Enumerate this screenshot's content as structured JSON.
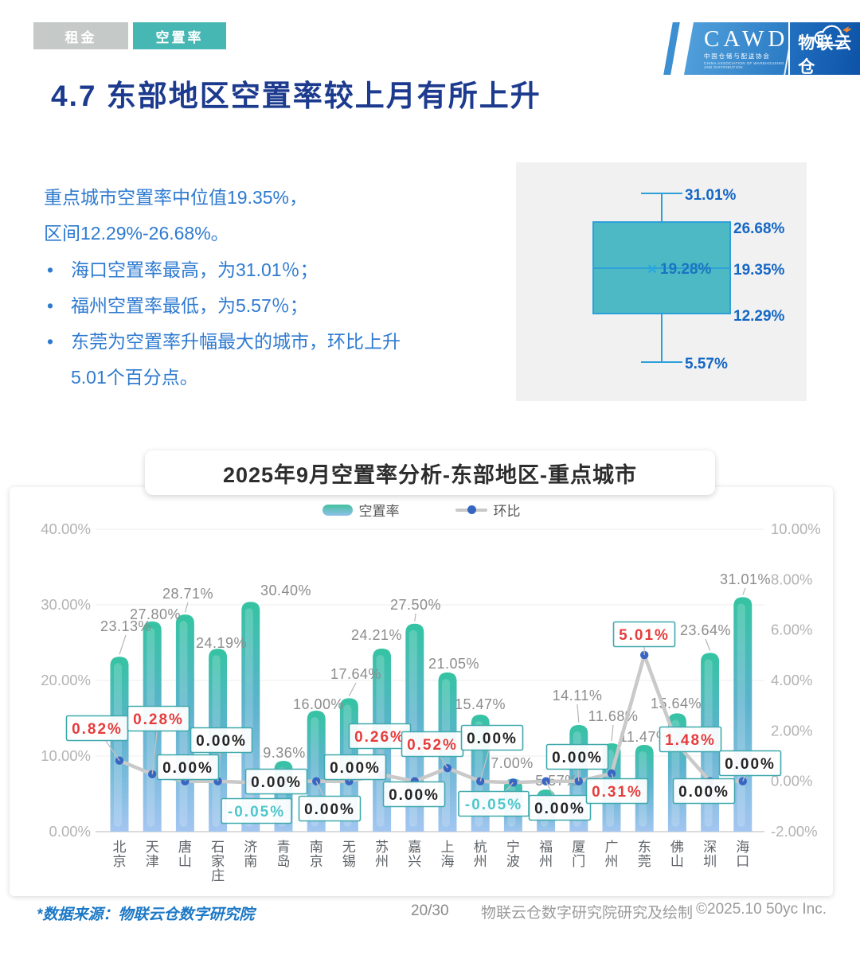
{
  "tabs": [
    {
      "label": "租金",
      "active": false
    },
    {
      "label": "空置率",
      "active": true
    }
  ],
  "logo": {
    "cawd": "CAWD",
    "cawd_sub": "中国仓储与配送协会",
    "cawd_sub_en": "CHINA ASSOCIATION OF WAREHOUSING AND DISTRIBUTION",
    "brand": "物联云仓",
    "brand_sub_parts": [
      "W",
      "AREHOUSE ",
      "I",
      "N",
      " ",
      "C",
      "LOUD"
    ]
  },
  "page_title": "4.7 东部地区空置率较上月有所上升",
  "intro": {
    "line1": "重点城市空置率中位值19.35%，",
    "line2": "区间12.29%-26.68%。",
    "bullet_mark": "•",
    "bullets": [
      [
        "海口空置率最高，为31.01％；"
      ],
      [
        "福州空置率最低，为5.57％；"
      ],
      [
        "东莞为空置率升幅最大的城市，环比上升",
        "5.01个百分点。"
      ]
    ]
  },
  "chart_title": "2025年9月空置率分析-东部地区-重点城市",
  "legend": [
    {
      "label": "空置率",
      "type": "bar"
    },
    {
      "label": "环比",
      "type": "line"
    }
  ],
  "chart_data": [
    {
      "type": "bar",
      "subtype": "bar-line-combo",
      "title": "2025年9月空置率分析-东部地区-重点城市",
      "categories": [
        "北京",
        "天津",
        "唐山",
        "石家庄",
        "济南",
        "青岛",
        "南京",
        "无锡",
        "苏州",
        "嘉兴",
        "上海",
        "杭州",
        "宁波",
        "福州",
        "厦门",
        "广州",
        "东莞",
        "佛山",
        "深圳",
        "海口"
      ],
      "series": [
        {
          "name": "空置率",
          "type": "bar",
          "axis": "left",
          "unit": "%",
          "values": [
            23.13,
            27.8,
            28.71,
            24.19,
            30.4,
            9.36,
            16.0,
            17.64,
            24.21,
            27.5,
            21.05,
            15.47,
            7.0,
            5.57,
            14.11,
            11.68,
            11.47,
            15.64,
            23.64,
            31.01
          ]
        },
        {
          "name": "环比",
          "type": "line",
          "axis": "right",
          "unit": "pct-pt",
          "values": [
            0.82,
            0.28,
            0.0,
            0.0,
            -0.05,
            0.0,
            0.0,
            0.0,
            0.26,
            0.0,
            0.52,
            0.0,
            -0.05,
            0.0,
            0.0,
            0.31,
            5.01,
            1.48,
            0.0,
            0.0
          ]
        }
      ],
      "y_left": {
        "min": 0,
        "max": 40,
        "tick_step": 10,
        "ticks": [
          "40.00%",
          "30.00%",
          "20.00%",
          "10.00%",
          "0.00%"
        ]
      },
      "y_right": {
        "min": -2,
        "max": 10,
        "tick_step": 2,
        "ticks": [
          "10.00%",
          "8.00%",
          "6.00%",
          "4.00%",
          "2.00%",
          "0.00%",
          "-2.00%"
        ]
      },
      "grid": true,
      "legend_position": "top"
    },
    {
      "type": "boxplot",
      "values": {
        "max": 31.01,
        "q3": 26.68,
        "median": 19.35,
        "mean": 19.28,
        "q1": 12.29,
        "min": 5.57
      },
      "labels": {
        "max": "31.01%",
        "q3": "26.68%",
        "median": "19.35%",
        "mean": "19.28%",
        "q1": "12.29%",
        "min": "5.57%",
        "mean_marker": "×"
      }
    }
  ],
  "footer": {
    "source": "*数据来源：物联云仓数字研究院",
    "page": "20/30",
    "credit": "物联云仓数字研究院研究及绘制",
    "copyright": "©2025.10 50yc Inc."
  },
  "colors": {
    "tab_teal": "#46b7b3",
    "tab_gray": "#c5c9c8",
    "title_navy": "#1c3a8e",
    "intro_blue": "#2e7ad0",
    "box_fill": "#4cb9c5",
    "box_stroke": "#2da0d9",
    "box_label_blue": "#1467c4",
    "bar_gradient_top": "#35c3a2",
    "bar_gradient_bottom": "#a3c6f0",
    "line_gray": "#c9c9c9",
    "dot_blue": "#3866c2",
    "badge_positive": "#e63c3c",
    "badge_negative": "#4ec7cb",
    "badge_zero": "#252525",
    "badge_border": "#3fa9ad"
  }
}
